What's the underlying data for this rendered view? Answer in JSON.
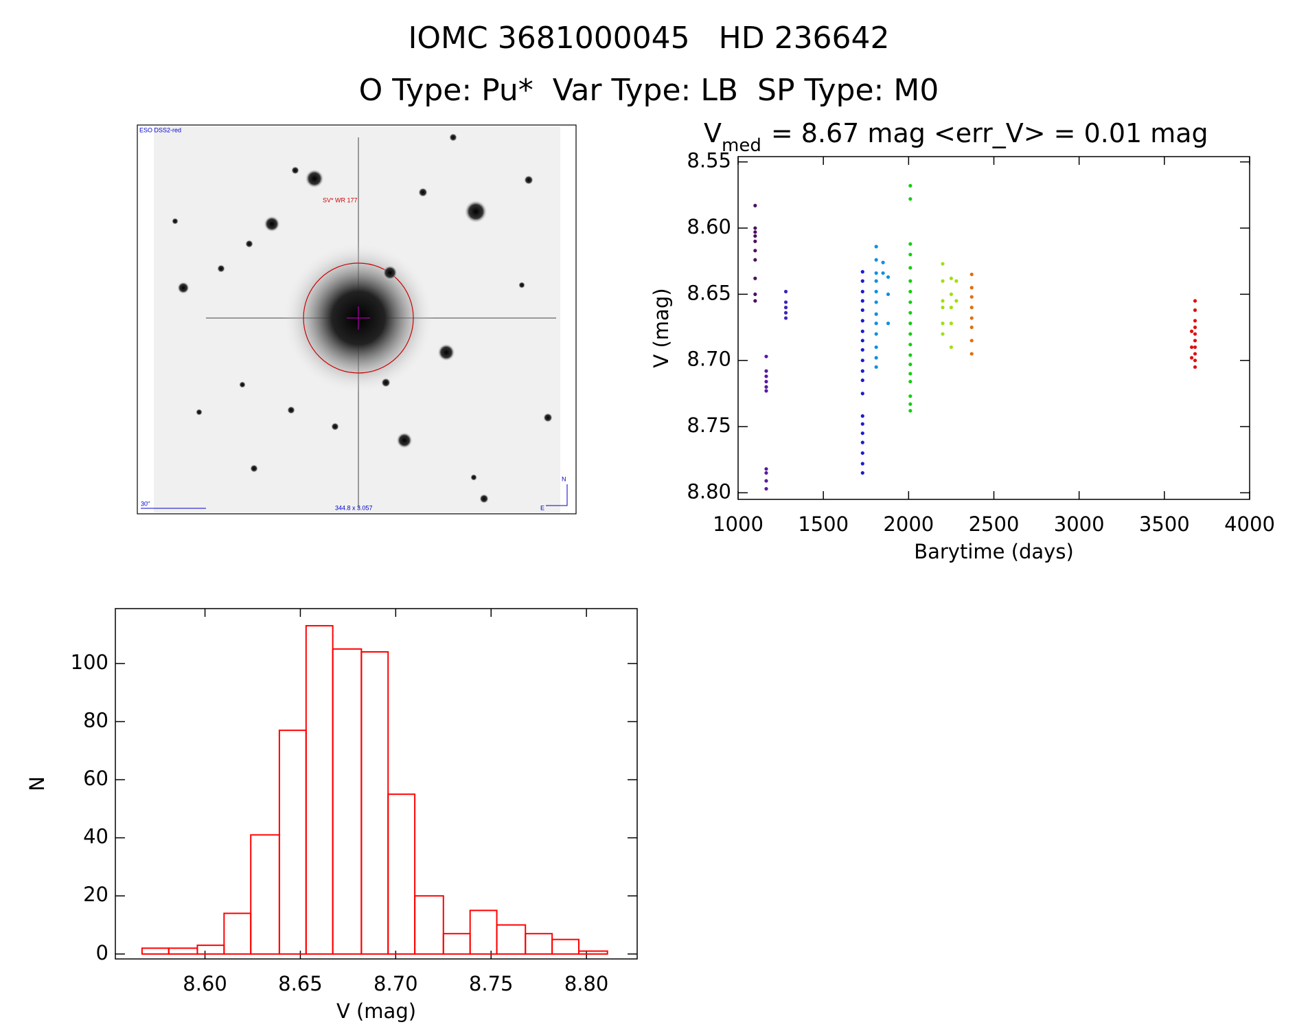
{
  "header": {
    "title": "IOMC 3681000045   HD 236642",
    "subtitle": "O Type: Pu*  Var Type: LB  SP Type: M0",
    "image_labels": {
      "survey": "ESO DSS2-red",
      "object": "SV* WR 177",
      "scale": "30\"",
      "coords": "344.8 x 3.057",
      "north": "N",
      "east": "E"
    }
  },
  "chart_data": [
    {
      "type": "scatter",
      "title": "V",
      "title_sub": "med",
      "title_rest": "= 8.67 mag <err_V> = 0.01 mag",
      "x_label": "Barytime (days)",
      "y_label": "V (mag)",
      "xlim": [
        1000,
        4000
      ],
      "xticks": [
        1000,
        1500,
        2000,
        2500,
        3000,
        3500,
        4000
      ],
      "ylim": [
        8.546,
        8.805
      ],
      "y_inverted": true,
      "yticks": [
        8.55,
        {
          "value": 8.6,
          "label": "8.60"
        },
        8.65,
        {
          "value": 8.7,
          "label": "8.70"
        },
        8.75,
        {
          "value": 8.8,
          "label": "8.80"
        }
      ],
      "series": [
        {
          "color": "#4b1060",
          "x": [
            1100,
            1100,
            1100,
            1100,
            1100,
            1100,
            1100,
            1100,
            1100,
            1100
          ],
          "values": [
            8.583,
            8.6,
            8.603,
            8.606,
            8.61,
            8.617,
            8.624,
            8.638,
            8.65,
            8.655
          ]
        },
        {
          "color": "#5a1aa0",
          "x": [
            1165,
            1165,
            1165,
            1165,
            1165,
            1165,
            1165,
            1165,
            1165,
            1165
          ],
          "values": [
            8.697,
            8.708,
            8.712,
            8.716,
            8.72,
            8.723,
            8.782,
            8.785,
            8.791,
            8.797
          ]
        },
        {
          "color": "#3c28b4",
          "x": [
            1280,
            1280,
            1280,
            1280,
            1280
          ],
          "values": [
            8.648,
            8.656,
            8.66,
            8.664,
            8.668
          ]
        },
        {
          "color": "#1c1ccc",
          "x": [
            1730,
            1730,
            1730,
            1730,
            1730,
            1730,
            1730,
            1730,
            1730,
            1730,
            1730,
            1730,
            1730,
            1730,
            1730,
            1730,
            1730,
            1730,
            1730,
            1730
          ],
          "values": [
            8.633,
            8.64,
            8.648,
            8.655,
            8.662,
            8.67,
            8.678,
            8.685,
            8.692,
            8.7,
            8.708,
            8.715,
            8.725,
            8.742,
            8.748,
            8.755,
            8.762,
            8.77,
            8.778,
            8.785
          ]
        },
        {
          "color": "#1090e0",
          "x": [
            1810,
            1810,
            1810,
            1810,
            1810,
            1810,
            1810,
            1810,
            1810,
            1810,
            1810,
            1810,
            1850,
            1850,
            1880,
            1880,
            1880
          ],
          "values": [
            8.614,
            8.624,
            8.634,
            8.64,
            8.648,
            8.656,
            8.665,
            8.672,
            8.68,
            8.69,
            8.698,
            8.705,
            8.626,
            8.634,
            8.637,
            8.65,
            8.672
          ]
        },
        {
          "color": "#10d010",
          "x": [
            2010,
            2010,
            2010,
            2010,
            2010,
            2010,
            2010,
            2010,
            2010,
            2010,
            2010,
            2010,
            2010,
            2010,
            2010,
            2010,
            2010,
            2010,
            2010
          ],
          "values": [
            8.568,
            8.578,
            8.612,
            8.62,
            8.63,
            8.64,
            8.648,
            8.656,
            8.664,
            8.672,
            8.68,
            8.688,
            8.696,
            8.703,
            8.71,
            8.716,
            8.727,
            8.733,
            8.738
          ]
        },
        {
          "color": "#a0e010",
          "x": [
            2200,
            2200,
            2200,
            2200,
            2200,
            2200,
            2250,
            2250,
            2250,
            2250,
            2250,
            2280,
            2280
          ],
          "values": [
            8.627,
            8.64,
            8.655,
            8.66,
            8.672,
            8.68,
            8.638,
            8.65,
            8.66,
            8.672,
            8.69,
            8.64,
            8.655
          ]
        },
        {
          "color": "#e07010",
          "x": [
            2370,
            2370,
            2370,
            2370,
            2370,
            2370,
            2370,
            2370
          ],
          "values": [
            8.635,
            8.645,
            8.652,
            8.66,
            8.668,
            8.675,
            8.685,
            8.695
          ]
        },
        {
          "color": "#e01010",
          "x": [
            3680,
            3680,
            3680,
            3680,
            3680,
            3680,
            3680,
            3680,
            3680,
            3680,
            3660,
            3660,
            3660
          ],
          "values": [
            8.655,
            8.662,
            8.67,
            8.675,
            8.68,
            8.685,
            8.69,
            8.695,
            8.7,
            8.705,
            8.678,
            8.69,
            8.698
          ]
        }
      ]
    },
    {
      "type": "histogram",
      "x_label": "V (mag)",
      "y_label": "N",
      "color": "#ff0000",
      "bins": [
        8.567,
        8.581,
        8.596,
        8.61,
        8.624,
        8.639,
        8.653,
        8.667,
        8.682,
        8.696,
        8.71,
        8.725,
        8.739,
        8.753,
        8.768,
        8.782,
        8.796,
        8.811
      ],
      "counts": [
        2,
        2,
        3,
        14,
        41,
        77,
        113,
        105,
        104,
        55,
        20,
        7,
        15,
        10,
        7,
        5,
        1
      ],
      "xlim": [
        8.553,
        8.8266
      ],
      "xticks": [
        {
          "value": 8.6,
          "label": "8.60"
        },
        8.65,
        {
          "value": 8.7,
          "label": "8.70"
        },
        8.75,
        {
          "value": 8.8,
          "label": "8.80"
        }
      ],
      "ylim": [
        -1.7,
        118.9
      ],
      "yticks": [
        0,
        20,
        40,
        60,
        80,
        100
      ]
    }
  ]
}
